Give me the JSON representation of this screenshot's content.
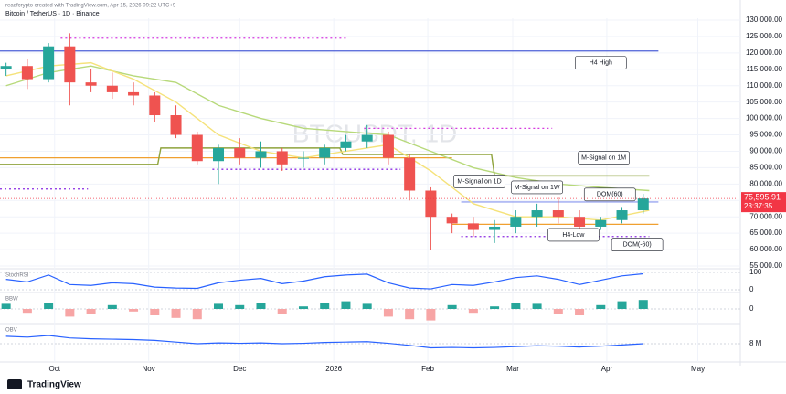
{
  "chart_data": {
    "type": "candlestick",
    "title": "Bitcoin / TetherUS · 1D · Binance",
    "subtitle": "readfcrypto created with TradingView.com, Apr 15, 2026 09:22 UTC+9",
    "watermark": "BTCUSDT, 1D",
    "brand": "TradingView",
    "xlim": [
      -2,
      242
    ],
    "xticks": [
      {
        "value": 16,
        "label": "Oct"
      },
      {
        "value": 47,
        "label": "Nov"
      },
      {
        "value": 77,
        "label": "Dec"
      },
      {
        "value": 108,
        "label": "2026"
      },
      {
        "value": 139,
        "label": "Feb"
      },
      {
        "value": 167,
        "label": "Mar"
      },
      {
        "value": 198,
        "label": "Apr"
      },
      {
        "value": 228,
        "label": "May"
      }
    ],
    "ylim": [
      55000,
      130000
    ],
    "yticks": [
      {
        "value": 55000,
        "label": "55,000.00"
      },
      {
        "value": 60000,
        "label": "60,000.00"
      },
      {
        "value": 65000,
        "label": "65,000.00"
      },
      {
        "value": 70000,
        "label": "70,000.00"
      },
      {
        "value": 75000,
        "label": "75,000.00"
      },
      {
        "value": 80000,
        "label": "80,000.00"
      },
      {
        "value": 85000,
        "label": "85,000.00"
      },
      {
        "value": 90000,
        "label": "90,000.00"
      },
      {
        "value": 95000,
        "label": "95,000.00"
      },
      {
        "value": 100000,
        "label": "100,000.00"
      },
      {
        "value": 105000,
        "label": "105,000.00"
      },
      {
        "value": 110000,
        "label": "110,000.00"
      },
      {
        "value": 115000,
        "label": "115,000.00"
      },
      {
        "value": 120000,
        "label": "120,000.00"
      },
      {
        "value": 125000,
        "label": "125,000.00"
      },
      {
        "value": 130000,
        "label": "130,000.00"
      }
    ],
    "grid": true,
    "up_color": "#26a69a",
    "down_color": "#ef5350",
    "candles": {
      "x": [
        0,
        7,
        14,
        21,
        28,
        35,
        42,
        49,
        56,
        63,
        70,
        77,
        84,
        91,
        98,
        105,
        112,
        119,
        126,
        133,
        140,
        147,
        154,
        161,
        168,
        175,
        182,
        189,
        196,
        203,
        210
      ],
      "open": [
        115000,
        116000,
        112000,
        122000,
        111000,
        110000,
        108000,
        107000,
        101000,
        95000,
        87000,
        91000,
        88000,
        90000,
        88000,
        88000,
        91000,
        93000,
        95000,
        88000,
        78000,
        70000,
        68000,
        66000,
        67000,
        70000,
        72000,
        70000,
        67000,
        69000,
        72000
      ],
      "high": [
        117000,
        118000,
        123000,
        126000,
        115000,
        114000,
        111000,
        108000,
        104000,
        96000,
        92000,
        94000,
        93000,
        91000,
        90000,
        92000,
        95000,
        98000,
        96000,
        89000,
        79000,
        71000,
        70000,
        69000,
        72000,
        74000,
        76000,
        72000,
        70000,
        73000,
        77000
      ],
      "low": [
        113000,
        109000,
        111000,
        104000,
        108000,
        106000,
        104000,
        99000,
        94000,
        86000,
        80000,
        86000,
        85000,
        84000,
        85000,
        86000,
        90000,
        91000,
        86000,
        75000,
        60000,
        65000,
        64000,
        62000,
        65000,
        67000,
        68000,
        65000,
        66000,
        68000,
        71000
      ],
      "close": [
        116000,
        112000,
        122000,
        111000,
        110000,
        108000,
        107000,
        101000,
        95000,
        87000,
        91000,
        88000,
        90000,
        86000,
        88000,
        91000,
        93000,
        95000,
        88000,
        78000,
        70000,
        68000,
        66000,
        67000,
        70000,
        72000,
        70000,
        67000,
        69000,
        72000,
        75595.91
      ]
    },
    "last_price": {
      "value": 75595.91,
      "label": "75,595.91",
      "countdown": "23:37:35",
      "color": "#f23645"
    },
    "lines": [
      {
        "color": "#b7d97a",
        "x": [
          0,
          14,
          28,
          42,
          56,
          70,
          84,
          98,
          112,
          126,
          140,
          154,
          168,
          182,
          196,
          212
        ],
        "values": [
          110000,
          114000,
          116000,
          113000,
          111000,
          104000,
          100000,
          97000,
          96000,
          95000,
          90000,
          85000,
          82000,
          80000,
          79000,
          78000
        ]
      },
      {
        "color": "#8fa33c",
        "x": [
          -2,
          50,
          51,
          110,
          111,
          160,
          161,
          212
        ],
        "values": [
          86000,
          86000,
          91000,
          91000,
          89000,
          89000,
          82500,
          82500
        ]
      },
      {
        "color": "#f5e27a",
        "x": [
          0,
          14,
          28,
          42,
          56,
          70,
          84,
          98,
          112,
          126,
          140,
          154,
          168,
          182,
          196,
          212
        ],
        "values": [
          113000,
          116000,
          117000,
          112000,
          105000,
          95000,
          90000,
          88000,
          90000,
          92000,
          84000,
          74000,
          70000,
          70000,
          69000,
          72000
        ]
      }
    ],
    "levels": [
      {
        "value": 120600,
        "from": -2,
        "to": 215,
        "color": "#4c5fd7"
      },
      {
        "value": 88000,
        "from": -2,
        "to": 147,
        "color": "#f0a030"
      },
      {
        "value": 67723.67,
        "from": 147,
        "to": 215,
        "color": "#f0a030"
      },
      {
        "value": 74536,
        "from": 150,
        "to": 215,
        "color": "#9aa6f0"
      },
      {
        "value": 124500,
        "from": 18,
        "to": 112,
        "color": "#d63be0"
      },
      {
        "value": 78500,
        "from": -2,
        "to": 27,
        "color": "#8a2be2"
      },
      {
        "value": 97000,
        "from": 118,
        "to": 180,
        "color": "#d63be0"
      },
      {
        "value": 84500,
        "from": 68,
        "to": 130,
        "color": "#8a2be2"
      },
      {
        "value": 64000,
        "from": 150,
        "to": 212,
        "color": "#8a2be2"
      }
    ],
    "annotations": [
      {
        "text": "H4 High",
        "x": 196,
        "y": 117000
      },
      {
        "text": "M-Signal on 1M",
        "x": 197,
        "y": 88000
      },
      {
        "text": "M-Signal on 1D",
        "x": 156,
        "y": 80800
      },
      {
        "text": "M-Signal on 1W",
        "x": 175,
        "y": 79000
      },
      {
        "text": "DOM(60)",
        "x": 199,
        "y": 76800
      },
      {
        "text": "H4-Low",
        "x": 187,
        "y": 64500
      },
      {
        "text": "DOM(-60)",
        "x": 208,
        "y": 61500
      }
    ],
    "stoch": {
      "label": "StochRSI",
      "ylim": [
        0,
        100
      ],
      "yticks": [
        0,
        100
      ],
      "color": "#2962ff",
      "values": [
        60,
        45,
        85,
        30,
        25,
        40,
        35,
        15,
        10,
        8,
        40,
        55,
        65,
        35,
        50,
        75,
        85,
        90,
        40,
        10,
        5,
        30,
        25,
        45,
        70,
        80,
        60,
        30,
        55,
        80,
        92
      ]
    },
    "bbw": {
      "label": "BBW",
      "ylim": [
        -1,
        1
      ],
      "yticks": [
        0
      ],
      "values": [
        0.4,
        -0.3,
        0.5,
        -0.6,
        -0.4,
        0.3,
        -0.2,
        -0.5,
        -0.7,
        -0.8,
        0.4,
        0.3,
        0.5,
        -0.4,
        0.2,
        0.5,
        0.6,
        0.4,
        -0.6,
        -0.8,
        -0.9,
        0.3,
        -0.3,
        0.2,
        0.5,
        0.4,
        -0.4,
        -0.5,
        0.3,
        0.6,
        0.7
      ]
    },
    "obv": {
      "label": "OBV",
      "ylim": [
        6000000,
        10000000
      ],
      "yticks": [
        {
          "value": 8000000,
          "label": "8 M"
        }
      ],
      "color": "#2962ff",
      "values": [
        8900000,
        8800000,
        9000000,
        8700000,
        8600000,
        8550000,
        8500000,
        8400000,
        8200000,
        8000000,
        8100000,
        8050000,
        8100000,
        8000000,
        8050000,
        8150000,
        8200000,
        8250000,
        8050000,
        7800000,
        7500000,
        7550000,
        7500000,
        7550000,
        7650000,
        7750000,
        7700000,
        7600000,
        7700000,
        7850000,
        8000000
      ]
    }
  }
}
